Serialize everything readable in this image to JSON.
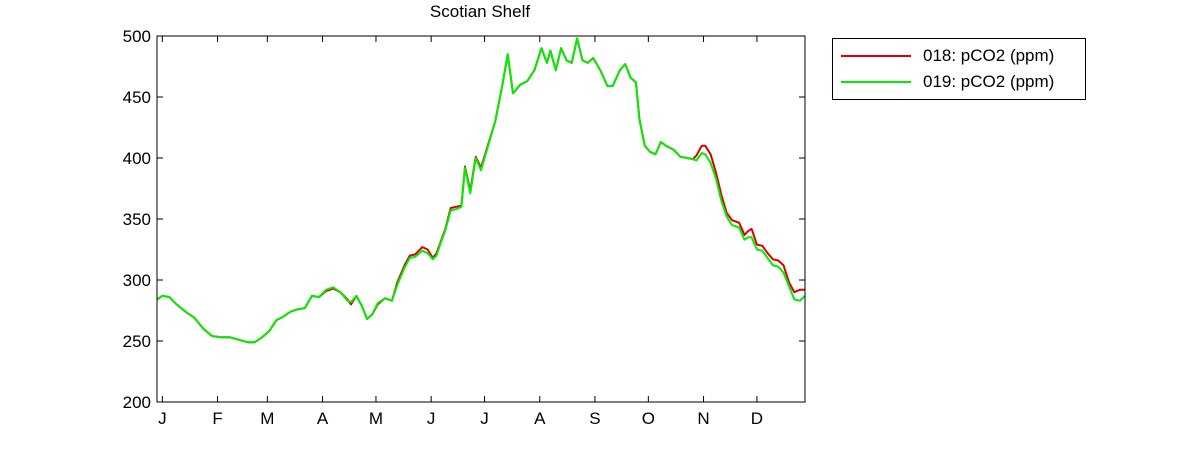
{
  "colors": {
    "series_018": "#dd0000",
    "series_019": "#00ee00",
    "axis": "#000000",
    "background": "#ffffff"
  },
  "chart_data": {
    "type": "line",
    "title": "Scotian Shelf",
    "xlabel": "",
    "ylabel": "",
    "ylim": [
      200,
      500
    ],
    "yticks": [
      200,
      250,
      300,
      350,
      400,
      450,
      500
    ],
    "xlim": [
      1,
      365
    ],
    "xticks": [
      {
        "label": "J",
        "day": 4
      },
      {
        "label": "F",
        "day": 35
      },
      {
        "label": "M",
        "day": 63
      },
      {
        "label": "A",
        "day": 94
      },
      {
        "label": "M",
        "day": 124
      },
      {
        "label": "J",
        "day": 155
      },
      {
        "label": "J",
        "day": 185
      },
      {
        "label": "A",
        "day": 216
      },
      {
        "label": "S",
        "day": 247
      },
      {
        "label": "O",
        "day": 277
      },
      {
        "label": "N",
        "day": 308
      },
      {
        "label": "D",
        "day": 338
      }
    ],
    "grid": false,
    "legend_position": "outside-right-top",
    "series": [
      {
        "name": "018: pCO2 (ppm)",
        "color": "#dd0000",
        "points": [
          [
            1,
            284
          ],
          [
            4,
            287
          ],
          [
            8,
            286
          ],
          [
            12,
            280
          ],
          [
            17,
            274
          ],
          [
            22,
            269
          ],
          [
            27,
            260
          ],
          [
            32,
            254
          ],
          [
            37,
            253
          ],
          [
            42,
            253
          ],
          [
            47,
            251
          ],
          [
            52,
            249
          ],
          [
            56,
            249
          ],
          [
            60,
            253
          ],
          [
            64,
            258
          ],
          [
            68,
            267
          ],
          [
            72,
            270
          ],
          [
            76,
            274
          ],
          [
            80,
            276
          ],
          [
            84,
            277
          ],
          [
            88,
            287
          ],
          [
            92,
            286
          ],
          [
            96,
            291
          ],
          [
            100,
            293
          ],
          [
            104,
            290
          ],
          [
            108,
            284
          ],
          [
            110,
            280
          ],
          [
            113,
            287
          ],
          [
            116,
            279
          ],
          [
            119,
            268
          ],
          [
            122,
            272
          ],
          [
            125,
            280
          ],
          [
            129,
            285
          ],
          [
            133,
            283
          ],
          [
            136,
            298
          ],
          [
            140,
            312
          ],
          [
            143,
            320
          ],
          [
            146,
            321
          ],
          [
            150,
            327
          ],
          [
            153,
            325
          ],
          [
            156,
            318
          ],
          [
            158,
            322
          ],
          [
            160,
            330
          ],
          [
            163,
            342
          ],
          [
            166,
            359
          ],
          [
            169,
            360
          ],
          [
            172,
            361
          ],
          [
            174,
            393
          ],
          [
            177,
            373
          ],
          [
            180,
            401
          ],
          [
            183,
            392
          ],
          [
            187,
            411
          ],
          [
            191,
            430
          ],
          [
            195,
            460
          ],
          [
            198,
            485
          ],
          [
            201,
            453
          ],
          [
            205,
            460
          ],
          [
            209,
            463
          ],
          [
            213,
            472
          ],
          [
            217,
            490
          ],
          [
            220,
            478
          ],
          [
            222,
            488
          ],
          [
            225,
            472
          ],
          [
            228,
            490
          ],
          [
            231,
            480
          ],
          [
            234,
            478
          ],
          [
            237,
            498
          ],
          [
            240,
            480
          ],
          [
            243,
            478
          ],
          [
            246,
            482
          ],
          [
            250,
            472
          ],
          [
            254,
            459
          ],
          [
            257,
            459
          ],
          [
            261,
            472
          ],
          [
            264,
            477
          ],
          [
            267,
            466
          ],
          [
            270,
            462
          ],
          [
            272,
            432
          ],
          [
            275,
            410
          ],
          [
            278,
            405
          ],
          [
            281,
            403
          ],
          [
            284,
            413
          ],
          [
            287,
            410
          ],
          [
            291,
            407
          ],
          [
            295,
            401
          ],
          [
            299,
            400
          ],
          [
            302,
            399
          ],
          [
            304,
            402
          ],
          [
            307,
            410
          ],
          [
            309,
            410
          ],
          [
            312,
            403
          ],
          [
            315,
            388
          ],
          [
            318,
            370
          ],
          [
            321,
            355
          ],
          [
            324,
            349
          ],
          [
            328,
            347
          ],
          [
            331,
            337
          ],
          [
            333,
            340
          ],
          [
            335,
            342
          ],
          [
            338,
            329
          ],
          [
            341,
            328
          ],
          [
            344,
            322
          ],
          [
            347,
            317
          ],
          [
            350,
            316
          ],
          [
            353,
            312
          ],
          [
            356,
            298
          ],
          [
            359,
            290
          ],
          [
            362,
            292
          ],
          [
            365,
            292
          ]
        ]
      },
      {
        "name": "019: pCO2 (ppm)",
        "color": "#00ee00",
        "points": [
          [
            1,
            284
          ],
          [
            4,
            287
          ],
          [
            8,
            286
          ],
          [
            12,
            280
          ],
          [
            17,
            274
          ],
          [
            22,
            269
          ],
          [
            27,
            260
          ],
          [
            32,
            254
          ],
          [
            37,
            253
          ],
          [
            42,
            253
          ],
          [
            47,
            251
          ],
          [
            52,
            249
          ],
          [
            56,
            249
          ],
          [
            60,
            253
          ],
          [
            64,
            258
          ],
          [
            68,
            267
          ],
          [
            72,
            270
          ],
          [
            76,
            274
          ],
          [
            80,
            276
          ],
          [
            84,
            277
          ],
          [
            88,
            287
          ],
          [
            92,
            286
          ],
          [
            96,
            292
          ],
          [
            100,
            294
          ],
          [
            104,
            290
          ],
          [
            108,
            283
          ],
          [
            110,
            282
          ],
          [
            113,
            287
          ],
          [
            116,
            279
          ],
          [
            119,
            268
          ],
          [
            122,
            272
          ],
          [
            125,
            281
          ],
          [
            129,
            285
          ],
          [
            133,
            283
          ],
          [
            136,
            296
          ],
          [
            140,
            310
          ],
          [
            143,
            318
          ],
          [
            146,
            319
          ],
          [
            150,
            324
          ],
          [
            153,
            322
          ],
          [
            156,
            317
          ],
          [
            158,
            320
          ],
          [
            160,
            329
          ],
          [
            163,
            341
          ],
          [
            166,
            357
          ],
          [
            169,
            358
          ],
          [
            172,
            360
          ],
          [
            174,
            392
          ],
          [
            177,
            371
          ],
          [
            180,
            400
          ],
          [
            183,
            390
          ],
          [
            187,
            410
          ],
          [
            191,
            430
          ],
          [
            195,
            460
          ],
          [
            198,
            485
          ],
          [
            201,
            453
          ],
          [
            205,
            460
          ],
          [
            209,
            463
          ],
          [
            213,
            472
          ],
          [
            217,
            490
          ],
          [
            220,
            478
          ],
          [
            222,
            488
          ],
          [
            225,
            472
          ],
          [
            228,
            490
          ],
          [
            231,
            480
          ],
          [
            234,
            478
          ],
          [
            237,
            498
          ],
          [
            240,
            480
          ],
          [
            243,
            478
          ],
          [
            246,
            482
          ],
          [
            250,
            472
          ],
          [
            254,
            459
          ],
          [
            257,
            459
          ],
          [
            261,
            472
          ],
          [
            264,
            477
          ],
          [
            267,
            466
          ],
          [
            270,
            462
          ],
          [
            272,
            432
          ],
          [
            275,
            410
          ],
          [
            278,
            405
          ],
          [
            281,
            403
          ],
          [
            284,
            413
          ],
          [
            287,
            410
          ],
          [
            291,
            407
          ],
          [
            295,
            401
          ],
          [
            299,
            400
          ],
          [
            302,
            399
          ],
          [
            304,
            398
          ],
          [
            307,
            404
          ],
          [
            309,
            403
          ],
          [
            312,
            396
          ],
          [
            315,
            383
          ],
          [
            318,
            365
          ],
          [
            321,
            352
          ],
          [
            324,
            345
          ],
          [
            328,
            343
          ],
          [
            331,
            333
          ],
          [
            333,
            335
          ],
          [
            335,
            335
          ],
          [
            338,
            325
          ],
          [
            341,
            324
          ],
          [
            344,
            318
          ],
          [
            347,
            312
          ],
          [
            350,
            311
          ],
          [
            353,
            306
          ],
          [
            356,
            295
          ],
          [
            359,
            284
          ],
          [
            362,
            283
          ],
          [
            365,
            287
          ]
        ]
      }
    ]
  }
}
